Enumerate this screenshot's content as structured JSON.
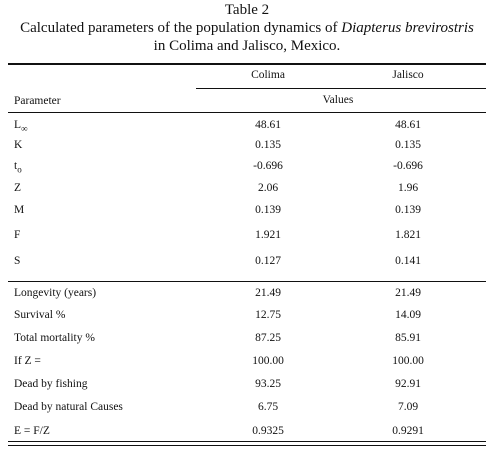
{
  "header": {
    "title": "Table 2",
    "caption": [
      "Calculated parameters of the population dynamics of ",
      "Diapterus brevirostris",
      "in Colima and Jalisco, Mexico."
    ]
  },
  "table": {
    "columns": [
      "Colima",
      "Jalisco"
    ],
    "parameter_label": "Parameter",
    "values_label": "Values",
    "groups": [
      [
        {
          "param": "L",
          "sub": "∞",
          "colima": "48.61",
          "jalisco": "48.61"
        },
        {
          "param": "K",
          "colima": "0.135",
          "jalisco": "0.135"
        },
        {
          "param": "t",
          "sub": "o",
          "colima": "-0.696",
          "jalisco": "-0.696"
        },
        {
          "param": "Z",
          "colima": "2.06",
          "jalisco": "1.96"
        },
        {
          "param": "M",
          "colima": "0.139",
          "jalisco": "0.139"
        },
        {
          "param": "F",
          "colima": "1.921",
          "jalisco": "1.821"
        },
        {
          "param": "S",
          "colima": "0.127",
          "jalisco": "0.141"
        }
      ],
      [
        {
          "param": "Longevity (years)",
          "colima": "21.49",
          "jalisco": "21.49"
        },
        {
          "param": "Survival %",
          "colima": "12.75",
          "jalisco": "14.09"
        },
        {
          "param": "Total mortality %",
          "colima": "87.25",
          "jalisco": "85.91"
        },
        {
          "param": "If Z =",
          "colima": "100.00",
          "jalisco": "100.00"
        },
        {
          "param": "Dead by fishing",
          "colima": "93.25",
          "jalisco": "92.91"
        },
        {
          "param": "Dead by natural Causes",
          "colima": "6.75",
          "jalisco": "7.09"
        },
        {
          "param": "E = F/Z",
          "colima": "0.9325",
          "jalisco": "0.9291"
        }
      ]
    ]
  }
}
